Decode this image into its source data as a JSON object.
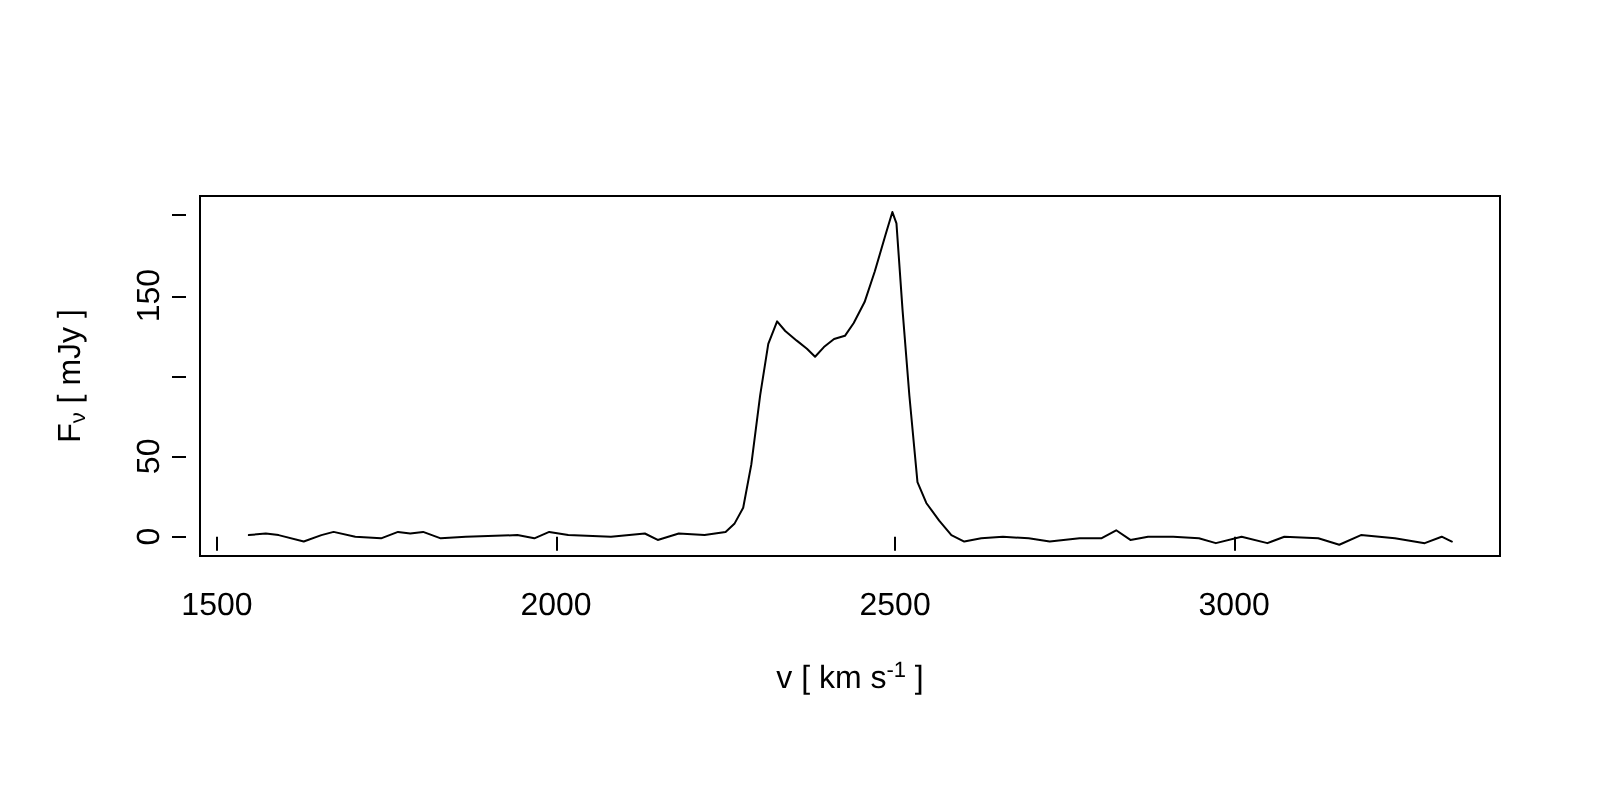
{
  "chart_data": {
    "type": "line",
    "xlabel": "v [ km s$^{-1}$ ]",
    "ylabel": "F$_{ν}$ [ mJy ]",
    "xlim": [
      1475,
      3392
    ],
    "xticks": [
      1500,
      2000,
      2500,
      3000
    ],
    "ylim": [
      -12,
      212
    ],
    "yticks": [
      0,
      50,
      {
        "value": 100,
        "label": null
      },
      150,
      {
        "value": 200,
        "label": null
      }
    ],
    "grid": false,
    "marker": "none",
    "line_style": "solid",
    "x": [
      1547,
      1572,
      1591,
      1628,
      1654,
      1672,
      1704,
      1742,
      1767,
      1785,
      1804,
      1830,
      1867,
      1943,
      1968,
      1990,
      2018,
      2081,
      2131,
      2150,
      2181,
      2219,
      2250,
      2263,
      2276,
      2288,
      2301,
      2313,
      2326,
      2338,
      2355,
      2370,
      2382,
      2395,
      2410,
      2426,
      2439,
      2455,
      2470,
      2486,
      2496,
      2502,
      2511,
      2521,
      2533,
      2546,
      2565,
      2583,
      2602,
      2627,
      2659,
      2697,
      2728,
      2772,
      2804,
      2826,
      2847,
      2873,
      2910,
      2948,
      2973,
      3011,
      3049,
      3074,
      3124,
      3155,
      3187,
      3237,
      3281,
      3306,
      3321
    ],
    "series": [
      {
        "color": "#000000",
        "values": [
          1,
          2,
          1,
          -3,
          1,
          3,
          0,
          -1,
          3,
          2,
          3,
          -1,
          0,
          1,
          -1,
          3,
          1,
          0,
          2,
          -2,
          2,
          1,
          3,
          8,
          18,
          45,
          88,
          120,
          134,
          128,
          122,
          117,
          112,
          118,
          123,
          125,
          133,
          146,
          165,
          188,
          202,
          195,
          141,
          88,
          34,
          21,
          10,
          1,
          -3,
          -1,
          0,
          -1,
          -3,
          -1,
          -1,
          4,
          -2,
          0,
          0,
          -1,
          -4,
          0,
          -4,
          0,
          -1,
          -5,
          1,
          -1,
          -4,
          0,
          -3
        ]
      }
    ]
  }
}
